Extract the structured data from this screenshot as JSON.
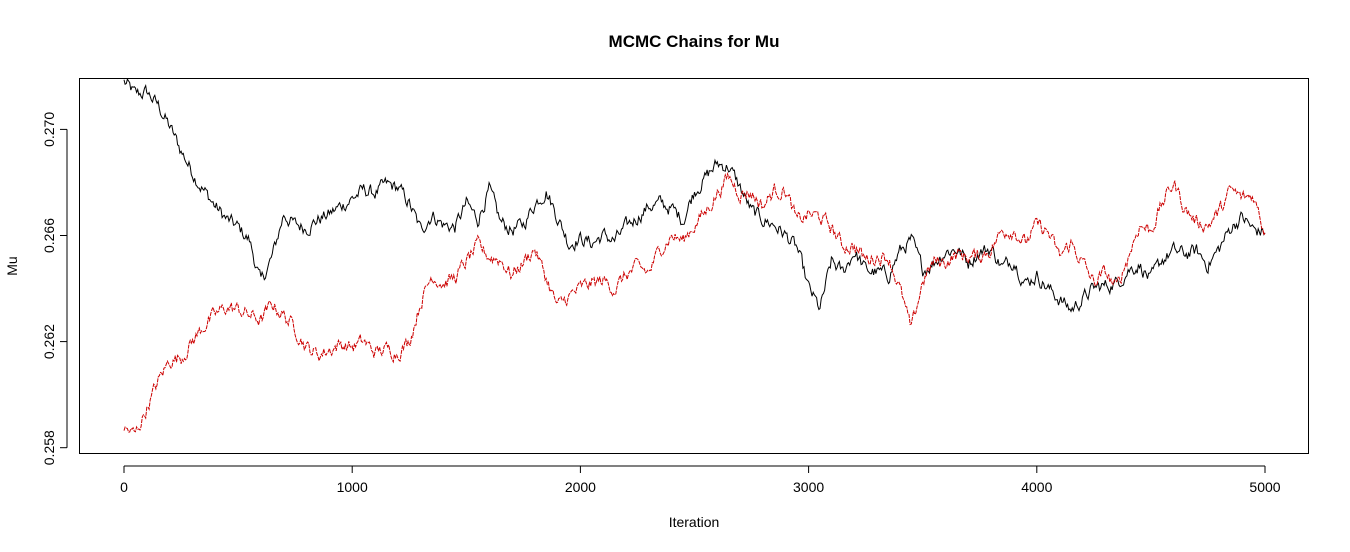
{
  "chart_data": {
    "type": "line",
    "title": "MCMC Chains for Mu",
    "xlabel": "Iteration",
    "ylabel": "Mu",
    "xlim": [
      0,
      5000
    ],
    "ylim": [
      0.2578,
      0.2719
    ],
    "x_ticks": [
      0,
      1000,
      2000,
      3000,
      4000,
      5000
    ],
    "x_tick_labels": [
      "0",
      "1000",
      "2000",
      "3000",
      "4000",
      "5000"
    ],
    "y_ticks": [
      0.258,
      0.262,
      0.266,
      0.27
    ],
    "y_tick_labels": [
      "0.258",
      "0.262",
      "0.266",
      "0.270"
    ],
    "grid": false,
    "legend": "none",
    "series": [
      {
        "color": "#000000",
        "line_style": "solid",
        "x": [
          0,
          50,
          100,
          150,
          200,
          250,
          300,
          350,
          400,
          450,
          500,
          550,
          600,
          650,
          700,
          750,
          800,
          850,
          900,
          950,
          1000,
          1050,
          1100,
          1150,
          1200,
          1250,
          1300,
          1350,
          1400,
          1450,
          1500,
          1550,
          1600,
          1650,
          1700,
          1750,
          1800,
          1850,
          1900,
          1950,
          2000,
          2050,
          2100,
          2150,
          2200,
          2250,
          2300,
          2350,
          2400,
          2450,
          2500,
          2550,
          2600,
          2650,
          2700,
          2750,
          2800,
          2850,
          2900,
          2950,
          3000,
          3050,
          3100,
          3150,
          3200,
          3250,
          3300,
          3350,
          3400,
          3450,
          3500,
          3550,
          3600,
          3650,
          3700,
          3750,
          3800,
          3850,
          3900,
          3950,
          4000,
          4050,
          4100,
          4150,
          4200,
          4250,
          4300,
          4350,
          4400,
          4450,
          4500,
          4550,
          4600,
          4650,
          4700,
          4750,
          4800,
          4850,
          4900,
          4950,
          5000
        ],
        "y": [
          0.2718,
          0.2713,
          0.2714,
          0.2709,
          0.2701,
          0.2692,
          0.2684,
          0.2677,
          0.2671,
          0.2666,
          0.2663,
          0.2658,
          0.2642,
          0.2652,
          0.2668,
          0.2664,
          0.2663,
          0.2666,
          0.2668,
          0.2671,
          0.2674,
          0.2677,
          0.2676,
          0.2679,
          0.2678,
          0.2672,
          0.2662,
          0.2668,
          0.2664,
          0.2663,
          0.2672,
          0.2666,
          0.2677,
          0.2665,
          0.2662,
          0.2664,
          0.2672,
          0.2677,
          0.2667,
          0.2657,
          0.2659,
          0.2657,
          0.266,
          0.2658,
          0.2663,
          0.2667,
          0.2671,
          0.2672,
          0.267,
          0.2666,
          0.2677,
          0.2682,
          0.2687,
          0.2686,
          0.2678,
          0.2669,
          0.2666,
          0.2664,
          0.266,
          0.2655,
          0.264,
          0.2632,
          0.265,
          0.2646,
          0.2654,
          0.2647,
          0.2646,
          0.2645,
          0.2654,
          0.2658,
          0.2647,
          0.265,
          0.2654,
          0.2655,
          0.265,
          0.2654,
          0.2655,
          0.2648,
          0.2651,
          0.2642,
          0.2645,
          0.264,
          0.2636,
          0.2632,
          0.2636,
          0.264,
          0.2641,
          0.2642,
          0.2647,
          0.2649,
          0.2643,
          0.2651,
          0.2654,
          0.2653,
          0.2654,
          0.2649,
          0.2655,
          0.2663,
          0.2667,
          0.2662,
          0.2661
        ]
      },
      {
        "color": "#cc0000",
        "line_style": "dashed",
        "x": [
          0,
          50,
          100,
          150,
          200,
          250,
          300,
          350,
          400,
          450,
          500,
          550,
          600,
          650,
          700,
          750,
          800,
          850,
          900,
          950,
          1000,
          1050,
          1100,
          1150,
          1200,
          1250,
          1300,
          1350,
          1400,
          1450,
          1500,
          1550,
          1600,
          1650,
          1700,
          1750,
          1800,
          1850,
          1900,
          1950,
          2000,
          2050,
          2100,
          2150,
          2200,
          2250,
          2300,
          2350,
          2400,
          2450,
          2500,
          2550,
          2600,
          2650,
          2700,
          2750,
          2800,
          2850,
          2900,
          2950,
          3000,
          3050,
          3100,
          3150,
          3200,
          3250,
          3300,
          3350,
          3400,
          3450,
          3500,
          3550,
          3600,
          3650,
          3700,
          3750,
          3800,
          3850,
          3900,
          3950,
          4000,
          4050,
          4100,
          4150,
          4200,
          4250,
          4300,
          4350,
          4400,
          4450,
          4500,
          4550,
          4600,
          4650,
          4700,
          4750,
          4800,
          4850,
          4900,
          4950,
          5000
        ],
        "y": [
          0.2587,
          0.2585,
          0.2595,
          0.2605,
          0.2613,
          0.2614,
          0.262,
          0.2626,
          0.263,
          0.2633,
          0.2632,
          0.263,
          0.2628,
          0.2634,
          0.263,
          0.2625,
          0.2618,
          0.2615,
          0.2617,
          0.2619,
          0.2618,
          0.262,
          0.2616,
          0.2617,
          0.2616,
          0.262,
          0.2635,
          0.2645,
          0.2642,
          0.2644,
          0.265,
          0.2656,
          0.2652,
          0.2651,
          0.2645,
          0.265,
          0.2655,
          0.2644,
          0.2633,
          0.2637,
          0.264,
          0.2642,
          0.2643,
          0.264,
          0.2645,
          0.2648,
          0.2646,
          0.2655,
          0.266,
          0.2658,
          0.2664,
          0.2669,
          0.2676,
          0.2682,
          0.2676,
          0.2676,
          0.2671,
          0.2677,
          0.2677,
          0.2665,
          0.2668,
          0.2667,
          0.2663,
          0.2656,
          0.2656,
          0.2651,
          0.2652,
          0.2652,
          0.264,
          0.2624,
          0.2643,
          0.265,
          0.265,
          0.2653,
          0.2652,
          0.2652,
          0.2655,
          0.2662,
          0.2662,
          0.2657,
          0.2664,
          0.2661,
          0.2652,
          0.2657,
          0.265,
          0.2642,
          0.2646,
          0.264,
          0.2652,
          0.2664,
          0.2662,
          0.2672,
          0.268,
          0.267,
          0.2665,
          0.2664,
          0.2669,
          0.2677,
          0.2674,
          0.2675,
          0.2661
        ]
      }
    ]
  }
}
